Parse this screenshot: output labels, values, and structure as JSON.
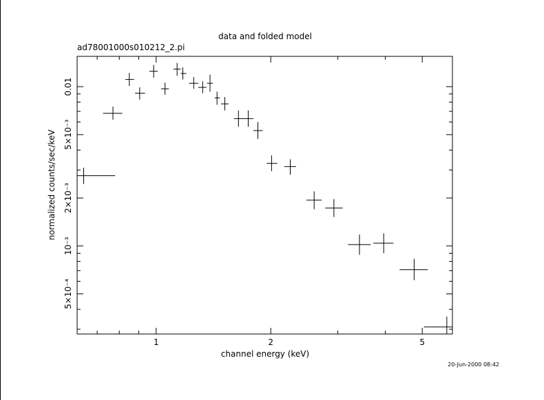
{
  "chart_data": {
    "type": "scatter",
    "title": "data and folded model",
    "subtitle": "ad78001000s010212_2.pi",
    "xlabel": "channel energy (keV)",
    "ylabel": "normalized counts/sec/keV",
    "x_scale": "log",
    "y_scale": "log",
    "xlim": [
      0.62,
      6.0
    ],
    "ylim": [
      0.00028,
      0.0155
    ],
    "x_ticks": [
      {
        "value": 1,
        "label": "1"
      },
      {
        "value": 2,
        "label": "2"
      },
      {
        "value": 5,
        "label": "5"
      }
    ],
    "y_ticks": [
      {
        "value": 0.0005,
        "label": "5×10⁻⁴"
      },
      {
        "value": 0.001,
        "label": "10⁻³"
      },
      {
        "value": 0.002,
        "label": "2×10⁻³"
      },
      {
        "value": 0.005,
        "label": "5×10⁻³"
      },
      {
        "value": 0.01,
        "label": "0.01"
      }
    ],
    "grid": false,
    "points": [
      {
        "x": 0.645,
        "xlo": 0.62,
        "xhi": 0.78,
        "y": 0.00276,
        "ylo": 0.00245,
        "yhi": 0.0031
      },
      {
        "x": 0.77,
        "xlo": 0.725,
        "xhi": 0.815,
        "y": 0.0068,
        "ylo": 0.0062,
        "yhi": 0.0075
      },
      {
        "x": 0.85,
        "xlo": 0.83,
        "xhi": 0.875,
        "y": 0.0111,
        "ylo": 0.0101,
        "yhi": 0.0122
      },
      {
        "x": 0.905,
        "xlo": 0.88,
        "xhi": 0.935,
        "y": 0.0091,
        "ylo": 0.0083,
        "yhi": 0.0099
      },
      {
        "x": 0.985,
        "xlo": 0.96,
        "xhi": 1.01,
        "y": 0.0125,
        "ylo": 0.0114,
        "yhi": 0.0137
      },
      {
        "x": 1.055,
        "xlo": 1.03,
        "xhi": 1.08,
        "y": 0.0097,
        "ylo": 0.0089,
        "yhi": 0.0106
      },
      {
        "x": 1.135,
        "xlo": 1.11,
        "xhi": 1.16,
        "y": 0.0129,
        "ylo": 0.0117,
        "yhi": 0.0141
      },
      {
        "x": 1.175,
        "xlo": 1.16,
        "xhi": 1.2,
        "y": 0.0121,
        "ylo": 0.0111,
        "yhi": 0.0132
      },
      {
        "x": 1.255,
        "xlo": 1.22,
        "xhi": 1.29,
        "y": 0.0105,
        "ylo": 0.0097,
        "yhi": 0.0115
      },
      {
        "x": 1.325,
        "xlo": 1.29,
        "xhi": 1.355,
        "y": 0.0099,
        "ylo": 0.0091,
        "yhi": 0.0108
      },
      {
        "x": 1.385,
        "xlo": 1.36,
        "xhi": 1.41,
        "y": 0.0105,
        "ylo": 0.0093,
        "yhi": 0.0119
      },
      {
        "x": 1.445,
        "xlo": 1.425,
        "xhi": 1.47,
        "y": 0.0085,
        "ylo": 0.0077,
        "yhi": 0.0093
      },
      {
        "x": 1.515,
        "xlo": 1.48,
        "xhi": 1.55,
        "y": 0.0078,
        "ylo": 0.0071,
        "yhi": 0.0086
      },
      {
        "x": 1.645,
        "xlo": 1.6,
        "xhi": 1.7,
        "y": 0.0063,
        "ylo": 0.0056,
        "yhi": 0.0071
      },
      {
        "x": 1.745,
        "xlo": 1.7,
        "xhi": 1.8,
        "y": 0.0063,
        "ylo": 0.0056,
        "yhi": 0.0071
      },
      {
        "x": 1.85,
        "xlo": 1.8,
        "xhi": 1.905,
        "y": 0.0053,
        "ylo": 0.0047,
        "yhi": 0.006
      },
      {
        "x": 2.01,
        "xlo": 1.95,
        "xhi": 2.08,
        "y": 0.0033,
        "ylo": 0.00295,
        "yhi": 0.0037
      },
      {
        "x": 2.25,
        "xlo": 2.17,
        "xhi": 2.33,
        "y": 0.00315,
        "ylo": 0.0028,
        "yhi": 0.0035
      },
      {
        "x": 2.6,
        "xlo": 2.48,
        "xhi": 2.72,
        "y": 0.00194,
        "ylo": 0.0017,
        "yhi": 0.0022
      },
      {
        "x": 2.93,
        "xlo": 2.78,
        "xhi": 3.09,
        "y": 0.00173,
        "ylo": 0.00152,
        "yhi": 0.00197
      },
      {
        "x": 3.42,
        "xlo": 3.19,
        "xhi": 3.66,
        "y": 0.00102,
        "ylo": 0.00088,
        "yhi": 0.00118
      },
      {
        "x": 3.96,
        "xlo": 3.72,
        "xhi": 4.2,
        "y": 0.00104,
        "ylo": 0.0009,
        "yhi": 0.0012
      },
      {
        "x": 4.76,
        "xlo": 4.36,
        "xhi": 5.17,
        "y": 0.00071,
        "ylo": 0.00061,
        "yhi": 0.00083
      },
      {
        "x": 5.8,
        "xlo": 5.05,
        "xhi": 6.0,
        "y": 0.00031,
        "ylo": 0.00028,
        "yhi": 0.00036
      }
    ]
  },
  "timestamp": "20-Jun-2000 08:42"
}
